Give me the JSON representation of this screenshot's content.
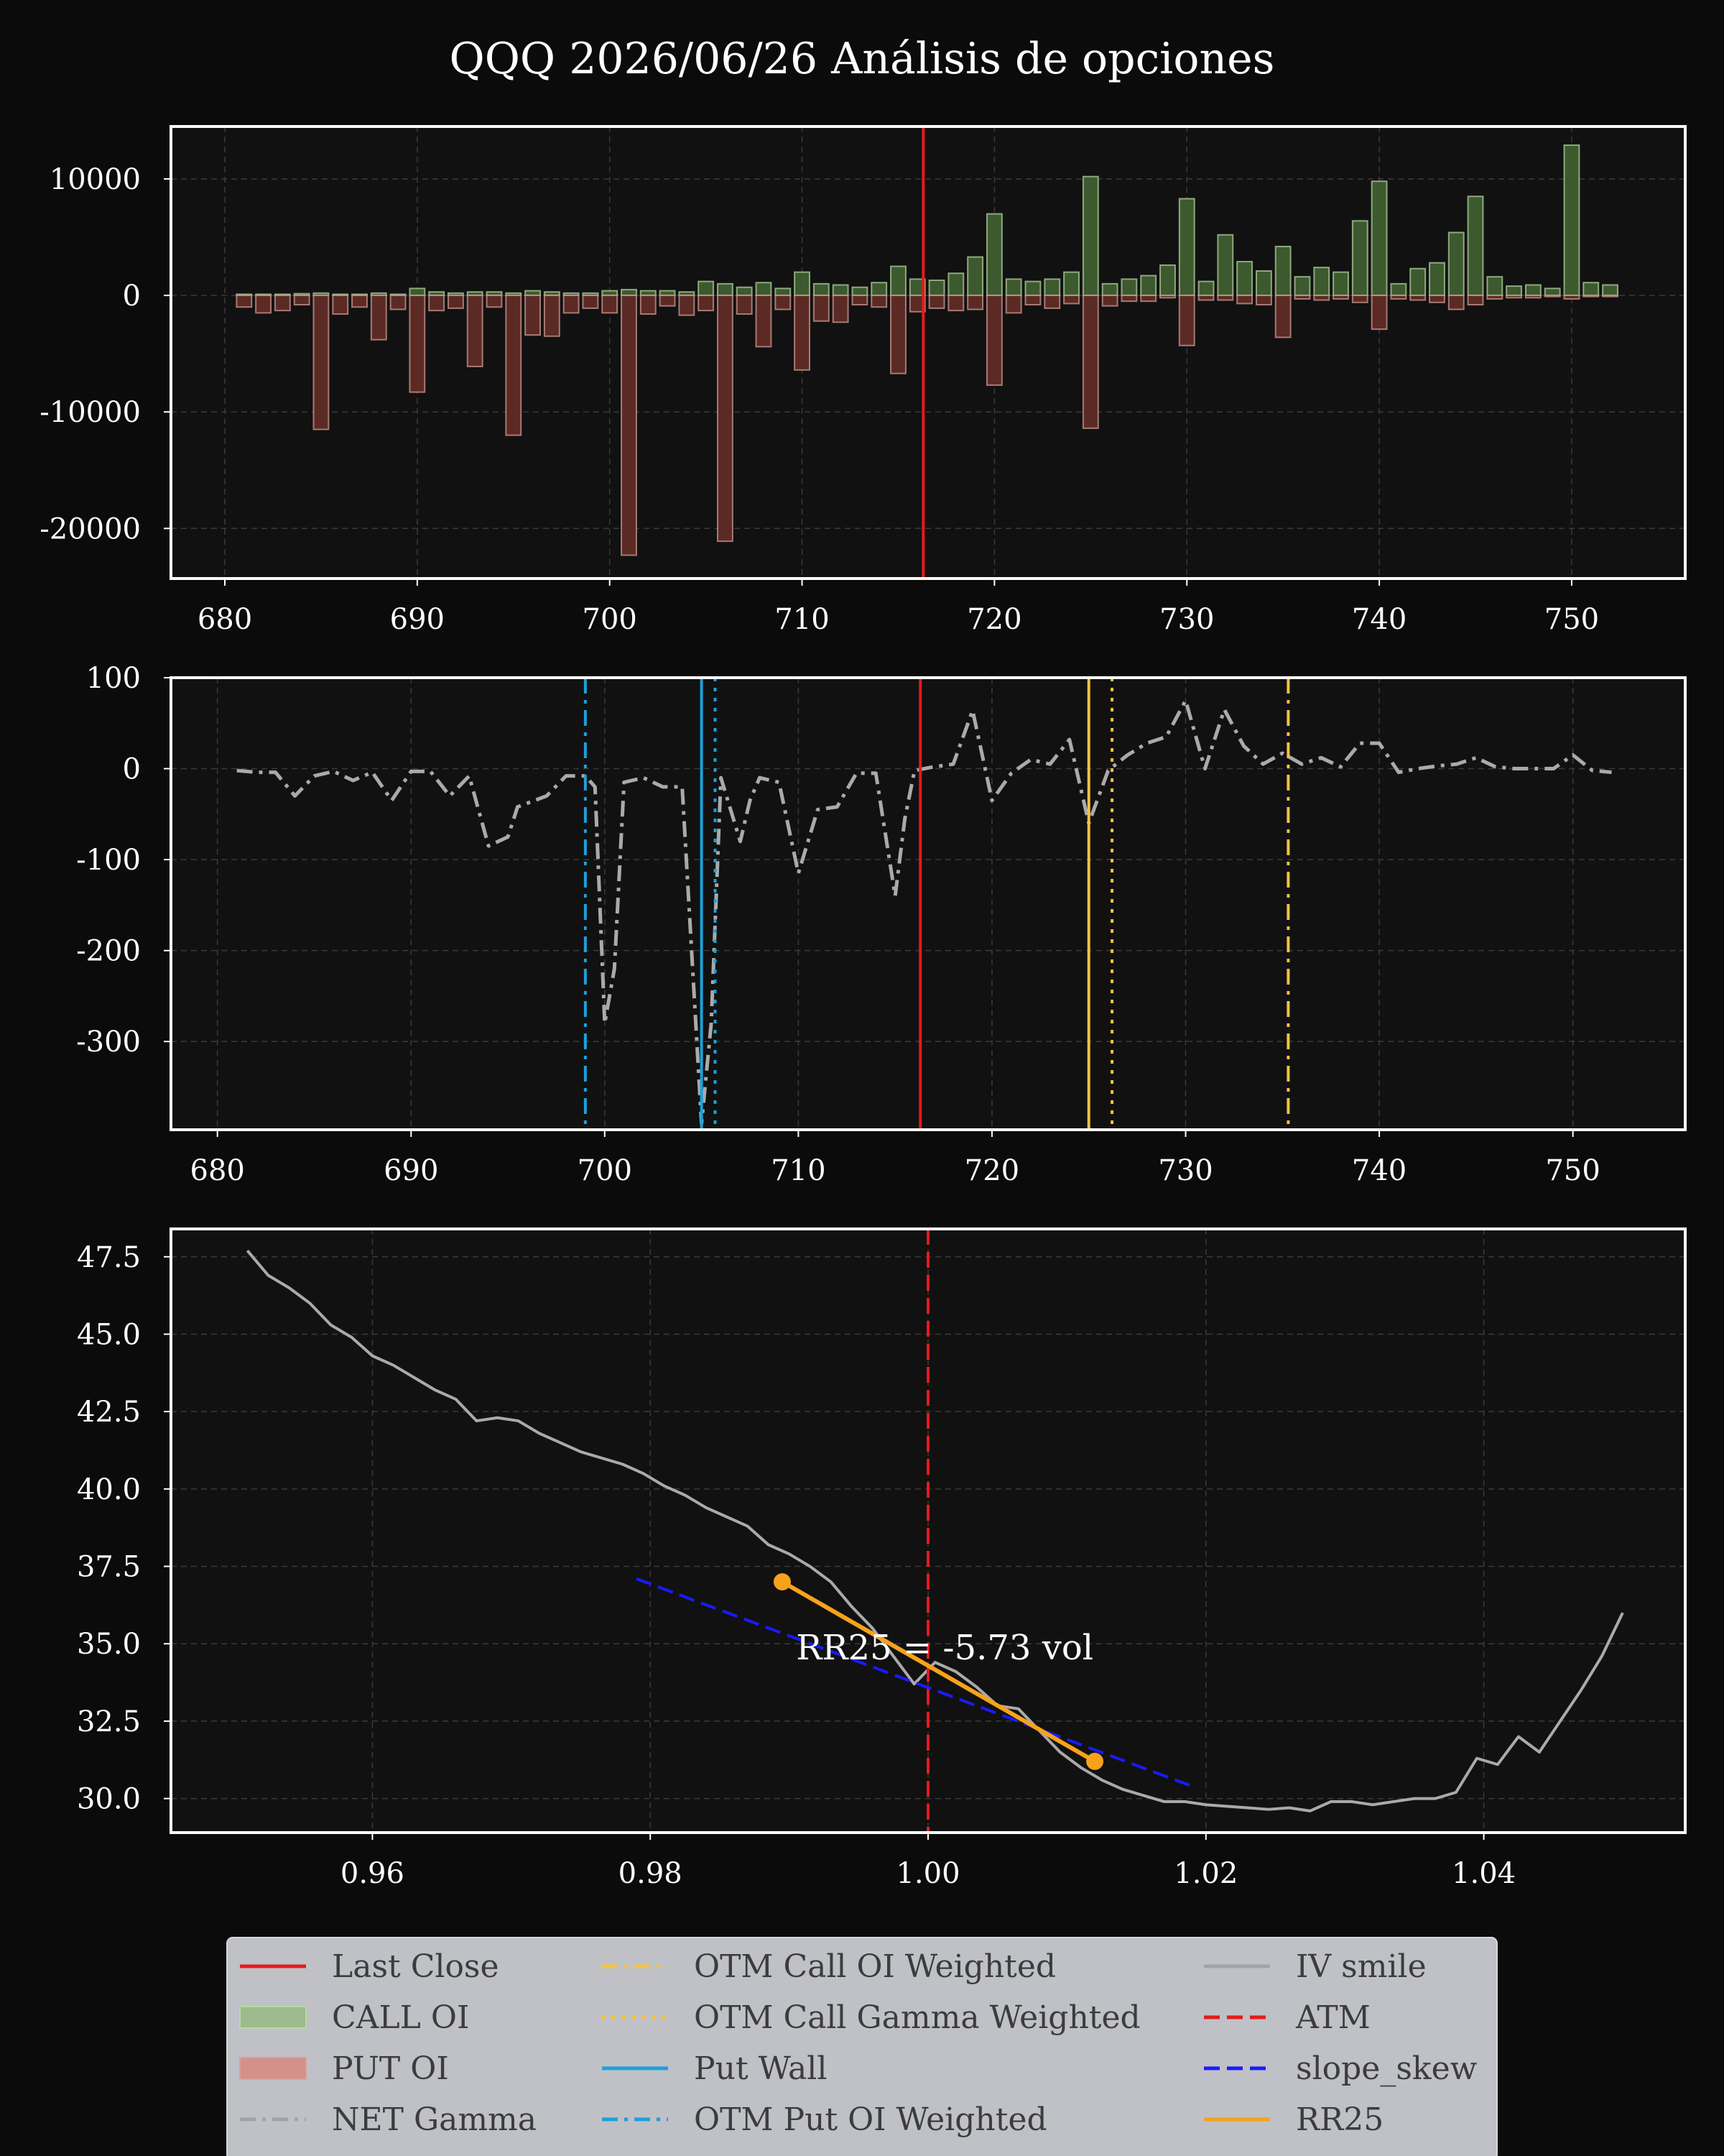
{
  "title": "QQQ 2026/06/26 Análisis de opciones",
  "colors": {
    "background": "#0b0b0b",
    "axes_bg": "#111111",
    "text": "#ffffff",
    "grid": "#3a3a3a",
    "call": "#3d5a2e",
    "call_edge": "#b8d9a6",
    "put": "#5b2a24",
    "put_edge": "#d9a09a",
    "last_close": "#e31b1b",
    "net_gamma": "#aaaaaa",
    "call_weighted": "#f5c242",
    "put_weighted": "#1ea0d8",
    "iv_smile": "#aaaaaa",
    "atm": "#e31b1b",
    "slope_skew": "#1a1aff",
    "rr25": "#f7a21b",
    "legend_bg": "#bfc1c6"
  },
  "chart_data": [
    {
      "type": "bar",
      "name": "open-interest",
      "x": [
        681,
        682,
        683,
        684,
        685,
        686,
        687,
        688,
        689,
        690,
        691,
        692,
        693,
        694,
        695,
        696,
        697,
        698,
        699,
        700,
        701,
        702,
        703,
        704,
        705,
        706,
        707,
        708,
        709,
        710,
        711,
        712,
        713,
        714,
        715,
        716,
        717,
        718,
        719,
        720,
        721,
        722,
        723,
        724,
        725,
        726,
        727,
        728,
        729,
        730,
        731,
        732,
        733,
        734,
        735,
        736,
        737,
        738,
        739,
        740,
        741,
        742,
        743,
        744,
        745,
        746,
        747,
        748,
        749,
        750,
        751,
        752
      ],
      "series": [
        {
          "name": "CALL OI",
          "values": [
            100,
            100,
            100,
            150,
            200,
            100,
            100,
            200,
            100,
            600,
            300,
            200,
            300,
            300,
            200,
            400,
            300,
            200,
            200,
            400,
            500,
            400,
            400,
            300,
            1200,
            1000,
            700,
            1100,
            600,
            2000,
            1000,
            900,
            700,
            1100,
            2500,
            1400,
            1300,
            1900,
            3300,
            7000,
            1400,
            1200,
            1400,
            2000,
            10200,
            1000,
            1400,
            1700,
            2600,
            8300,
            1200,
            5200,
            2900,
            2100,
            4200,
            1600,
            2400,
            2000,
            6400,
            9800,
            1000,
            2300,
            2800,
            5400,
            8500,
            1600,
            800,
            900,
            600,
            12900,
            1100,
            900
          ]
        },
        {
          "name": "PUT OI",
          "values": [
            -1000,
            -1500,
            -1300,
            -800,
            -11500,
            -1600,
            -1000,
            -3800,
            -1200,
            -8300,
            -1300,
            -1100,
            -6100,
            -1000,
            -12000,
            -3400,
            -3500,
            -1500,
            -1100,
            -1500,
            -22300,
            -1600,
            -900,
            -1700,
            -1300,
            -21100,
            -1600,
            -4400,
            -1200,
            -6400,
            -2200,
            -2300,
            -800,
            -1000,
            -6700,
            -1400,
            -1100,
            -1300,
            -1200,
            -7700,
            -1500,
            -800,
            -1100,
            -700,
            -11400,
            -900,
            -500,
            -500,
            -200,
            -4300,
            -400,
            -400,
            -700,
            -800,
            -3600,
            -300,
            -400,
            -300,
            -600,
            -2900,
            -300,
            -400,
            -600,
            -1200,
            -800,
            -300,
            -200,
            -200,
            -100,
            -300,
            -100,
            -100
          ]
        }
      ],
      "last_close": 716.3,
      "xlim": [
        677.2,
        755.9
      ],
      "ylim": [
        -24300,
        14500
      ],
      "xticks": [
        680,
        690,
        700,
        710,
        720,
        730,
        740,
        750
      ],
      "yticks": [
        10000,
        0,
        -10000,
        -20000
      ],
      "ytick_labels": [
        "10000",
        "0",
        "-10000",
        "-20000"
      ],
      "grid": true
    },
    {
      "type": "line",
      "name": "net-gamma",
      "series": [
        {
          "name": "NET Gamma",
          "x": [
            681,
            682,
            683,
            684,
            685,
            686,
            687,
            688,
            689,
            690,
            691,
            692,
            693,
            694,
            695,
            695.5,
            696,
            697,
            698,
            699,
            699.5,
            700,
            700.5,
            701,
            702,
            703,
            704,
            705,
            705.5,
            706,
            707,
            707.5,
            708,
            709,
            710,
            711,
            712,
            713,
            714,
            715,
            715.5,
            716,
            717,
            718,
            719,
            720,
            721,
            722,
            723,
            724,
            725,
            726,
            727,
            728,
            729,
            730,
            731,
            732,
            733,
            734,
            735,
            736,
            737,
            738,
            739,
            740,
            741,
            742,
            743,
            744,
            745,
            746,
            747,
            748,
            749,
            750,
            751,
            752
          ],
          "values": [
            -2,
            -4,
            -4,
            -30,
            -8,
            -3,
            -13,
            -4,
            -35,
            -3,
            -3,
            -30,
            -8,
            -85,
            -75,
            -42,
            -38,
            -30,
            -8,
            -8,
            -20,
            -280,
            -220,
            -15,
            -10,
            -20,
            -20,
            -390,
            -280,
            -10,
            -80,
            -35,
            -10,
            -15,
            -115,
            -45,
            -42,
            -5,
            -5,
            -140,
            -55,
            -2,
            2,
            5,
            64,
            -35,
            -5,
            10,
            5,
            32,
            -60,
            -2,
            15,
            28,
            35,
            75,
            0,
            65,
            25,
            5,
            17,
            5,
            12,
            2,
            28,
            28,
            -4,
            0,
            3,
            5,
            12,
            2,
            0,
            0,
            0,
            15,
            -2,
            -4
          ]
        }
      ],
      "vlines": {
        "Last Close": 716.3,
        "OTM Call OI Weighted": 735.3,
        "OTM Call Gamma Weighted": 726.2,
        "Call Wall": 725.0,
        "Put Wall": 705.0,
        "OTM Put OI Weighted": 699.0,
        "OTM Put Gamma Weighted": 705.7
      },
      "xlim": [
        677.6,
        755.8
      ],
      "ylim": [
        -397,
        100
      ],
      "xticks": [
        680,
        690,
        700,
        710,
        720,
        730,
        740,
        750
      ],
      "yticks": [
        100,
        0,
        -100,
        -200,
        -300
      ],
      "ytick_labels": [
        "100",
        "0",
        "-100",
        "-200",
        "-300"
      ],
      "grid": true
    },
    {
      "type": "line",
      "name": "iv-smile",
      "series": [
        {
          "name": "IV smile",
          "x": [
            0.951,
            0.9525,
            0.954,
            0.9555,
            0.957,
            0.9585,
            0.96,
            0.9615,
            0.963,
            0.9645,
            0.966,
            0.9675,
            0.969,
            0.9705,
            0.972,
            0.9735,
            0.975,
            0.9765,
            0.978,
            0.9795,
            0.981,
            0.9825,
            0.984,
            0.9855,
            0.987,
            0.9885,
            0.99,
            0.9915,
            0.993,
            0.9945,
            0.996,
            0.9975,
            0.999,
            1.0005,
            1.002,
            1.0035,
            1.005,
            1.0065,
            1.008,
            1.0095,
            1.011,
            1.0125,
            1.014,
            1.0155,
            1.017,
            1.0185,
            1.02,
            1.0215,
            1.023,
            1.0245,
            1.026,
            1.0275,
            1.029,
            1.0305,
            1.032,
            1.0335,
            1.035,
            1.0365,
            1.038,
            1.0395,
            1.041,
            1.0425,
            1.044,
            1.0455,
            1.047,
            1.0485,
            1.05
          ],
          "values": [
            47.7,
            46.9,
            46.5,
            46.0,
            45.3,
            44.9,
            44.3,
            44.0,
            43.6,
            43.2,
            42.9,
            42.2,
            42.3,
            42.2,
            41.8,
            41.5,
            41.2,
            41.0,
            40.8,
            40.5,
            40.1,
            39.8,
            39.4,
            39.1,
            38.8,
            38.2,
            37.9,
            37.5,
            37.0,
            36.2,
            35.5,
            34.6,
            33.7,
            34.4,
            34.1,
            33.6,
            33.0,
            32.9,
            32.2,
            31.5,
            31.0,
            30.6,
            30.3,
            30.1,
            29.9,
            29.9,
            29.8,
            29.75,
            29.7,
            29.65,
            29.7,
            29.6,
            29.9,
            29.9,
            29.8,
            29.9,
            30.0,
            30.0,
            30.2,
            31.3,
            31.1,
            32.0,
            31.5,
            32.5,
            33.5,
            34.6,
            36.0
          ]
        },
        {
          "name": "slope_skew",
          "x": [
            0.979,
            1.019
          ],
          "values": [
            37.1,
            30.4
          ]
        },
        {
          "name": "RR25",
          "x": [
            0.9895,
            1.012
          ],
          "values": [
            37.0,
            31.2
          ]
        }
      ],
      "vlines": {
        "ATM": 1.0
      },
      "annotation": "RR25 = -5.73 vol",
      "xlim": [
        0.9455,
        1.0545
      ],
      "ylim": [
        28.9,
        48.4
      ],
      "xticks": [
        0.96,
        0.98,
        1.0,
        1.02,
        1.04
      ],
      "xtick_labels": [
        "0.96",
        "0.98",
        "1.00",
        "1.02",
        "1.04"
      ],
      "yticks": [
        47.5,
        45.0,
        42.5,
        40.0,
        37.5,
        35.0,
        32.5,
        30.0
      ],
      "ytick_labels": [
        "47.5",
        "45.0",
        "42.5",
        "40.0",
        "37.5",
        "35.0",
        "32.5",
        "30.0"
      ],
      "grid": true
    }
  ],
  "legend": {
    "columns": [
      [
        {
          "label": "Last Close",
          "kind": "line",
          "color": "#e31b1b",
          "dash": "solid"
        },
        {
          "label": "CALL OI",
          "kind": "patch",
          "fill": "#9dbb8c",
          "edge": "#b8d9a6"
        },
        {
          "label": "PUT OI",
          "kind": "patch",
          "fill": "#d4918b",
          "edge": "#d9a09a"
        },
        {
          "label": "NET Gamma",
          "kind": "line",
          "color": "#a2a3a6",
          "dash": "dashdot"
        }
      ],
      [
        {
          "label": "OTM Call OI Weighted",
          "kind": "line",
          "color": "#f5c242",
          "dash": "dashdot"
        },
        {
          "label": "OTM Call Gamma Weighted",
          "kind": "line",
          "color": "#f5c242",
          "dash": "dotted"
        },
        {
          "label": "Put Wall",
          "kind": "line",
          "color": "#1ea0d8",
          "dash": "solid"
        },
        {
          "label": "OTM Put OI Weighted",
          "kind": "line",
          "color": "#1ea0d8",
          "dash": "dashdot"
        }
      ],
      [
        {
          "label": "IV smile",
          "kind": "line",
          "color": "#a2a3a6",
          "dash": "solid"
        },
        {
          "label": "ATM",
          "kind": "line",
          "color": "#e31b1b",
          "dash": "dashed"
        },
        {
          "label": "slope_skew",
          "kind": "line",
          "color": "#1a1aff",
          "dash": "dashed"
        },
        {
          "label": "RR25",
          "kind": "line",
          "color": "#f7a21b",
          "dash": "solid"
        }
      ]
    ]
  }
}
